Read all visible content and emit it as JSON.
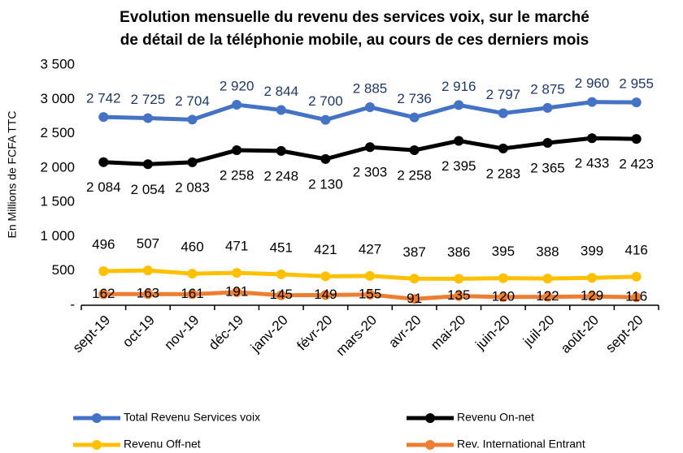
{
  "chart_data": {
    "type": "line",
    "title": [
      "Evolution mensuelle du revenu des services voix, sur le marché",
      "de détail de la téléphonie mobile, au cours de ces derniers mois"
    ],
    "y_label": "En Millions de FCFA TTC",
    "categories": [
      "sept-19",
      "oct-19",
      "nov-19",
      "déc-19",
      "janv-20",
      "févr-20",
      "mars-20",
      "avr-20",
      "mai-20",
      "juin-20",
      "juil-20",
      "août-20",
      "sept-20"
    ],
    "ylim": [
      0,
      3500
    ],
    "yticks": [
      {
        "value": 0,
        "label": "-"
      },
      500,
      {
        "value": 1000,
        "label": "1 000"
      },
      {
        "value": 1500,
        "label": "1 500"
      },
      {
        "value": 2000,
        "label": "2 000"
      },
      {
        "value": 2500,
        "label": "2 500"
      },
      {
        "value": 3000,
        "label": "3 000"
      },
      {
        "value": 3500,
        "label": "3 500"
      }
    ],
    "grid": false,
    "legend": "bottom",
    "series": [
      {
        "name": "Total Revenu Services voix",
        "color": "#4472c4",
        "label_color": "#1f3864",
        "values": [
          2742,
          2725,
          2704,
          2920,
          2844,
          2700,
          2885,
          2736,
          2916,
          2797,
          2875,
          2960,
          2955
        ],
        "value_labels": [
          "2 742",
          "2 725",
          "2 704",
          "2 920",
          "2 844",
          "2 700",
          "2 885",
          "2 736",
          "2 916",
          "2 797",
          "2 875",
          "2 960",
          "2 955"
        ]
      },
      {
        "name": "Revenu On-net",
        "color": "#000000",
        "label_color": "#000000",
        "values": [
          2084,
          2054,
          2083,
          2258,
          2248,
          2130,
          2303,
          2258,
          2395,
          2283,
          2365,
          2433,
          2423
        ],
        "value_labels": [
          "2 084",
          "2 054",
          "2 083",
          "2 258",
          "2 248",
          "2 130",
          "2 303",
          "2 258",
          "2 395",
          "2 283",
          "2 365",
          "2 433",
          "2 423"
        ]
      },
      {
        "name": "Revenu Off-net",
        "color": "#ffc000",
        "label_color": "#000000",
        "values": [
          496,
          507,
          460,
          471,
          451,
          421,
          427,
          387,
          386,
          395,
          388,
          399,
          416
        ]
      },
      {
        "name": "Rev. International Entrant",
        "color": "#ed7d31",
        "label_color": "#000000",
        "values": [
          162,
          163,
          161,
          191,
          145,
          149,
          155,
          91,
          135,
          120,
          122,
          129,
          116
        ]
      }
    ]
  }
}
